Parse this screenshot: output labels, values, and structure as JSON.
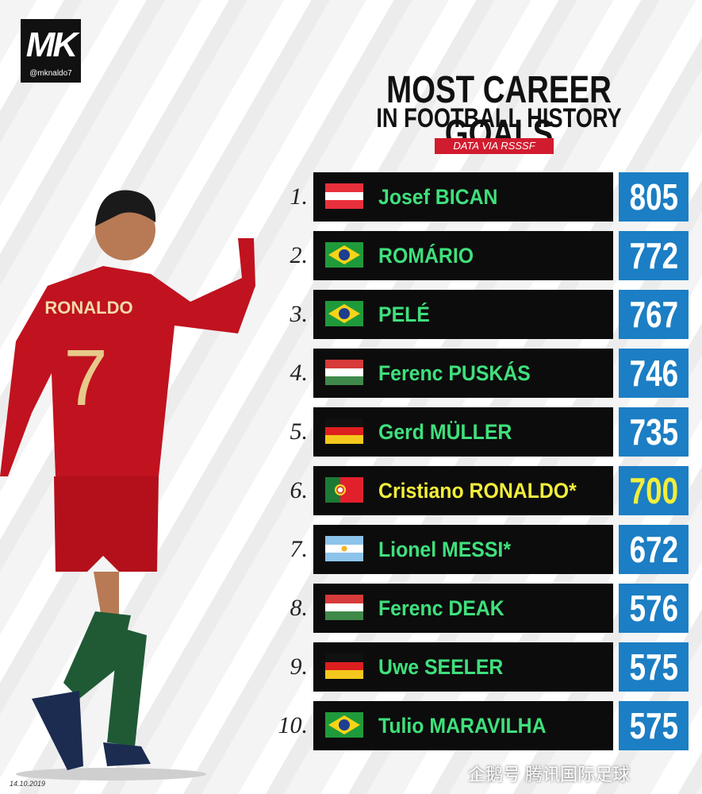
{
  "header": {
    "logo": "MK",
    "handle": "@mknaldo7",
    "title": "MOST CAREER GOALS",
    "subtitle": "IN FOOTBALL HISTORY",
    "source": "DATA VIA RSSSF"
  },
  "player_photo": {
    "shirt_name": "RONALDO",
    "shirt_number": "7"
  },
  "table": {
    "rows": [
      {
        "rank": "1.",
        "name": "Josef BICAN",
        "goals": 805,
        "color": "#3fe07c"
      },
      {
        "rank": "2.",
        "name": "ROMÁRIO",
        "goals": 772,
        "color": "#3fe07c"
      },
      {
        "rank": "3.",
        "name": "PELÉ",
        "goals": 767,
        "color": "#3fe07c"
      },
      {
        "rank": "4.",
        "name": "Ferenc PUSKÁS",
        "goals": 746,
        "color": "#3fe07c"
      },
      {
        "rank": "5.",
        "name": "Gerd MÜLLER",
        "goals": 735,
        "color": "#3fe07c"
      },
      {
        "rank": "6.",
        "name": "Cristiano RONALDO*",
        "goals": 700,
        "color": "#f2ee3a"
      },
      {
        "rank": "7.",
        "name": "Lionel MESSI*",
        "goals": 672,
        "color": "#3fe07c"
      },
      {
        "rank": "8.",
        "name": "Ferenc DEAK",
        "goals": 576,
        "color": "#3fe07c"
      },
      {
        "rank": "9.",
        "name": "Uwe SEELER",
        "goals": 575,
        "color": "#3fe07c"
      },
      {
        "rank": "10.",
        "name": "Tulio MARAVILHA",
        "goals": 575,
        "color": "#3fe07c"
      }
    ]
  },
  "footer": {
    "date": "14.10.2019",
    "watermark": "企鹅号 腾讯国际足球"
  }
}
